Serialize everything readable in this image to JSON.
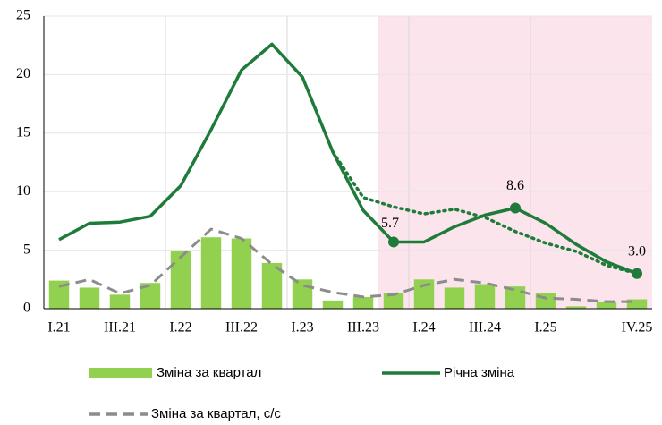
{
  "chart_data": {
    "type": "combo",
    "categories": [
      "I.21",
      null,
      "III.21",
      null,
      "I.22",
      null,
      "III.22",
      null,
      "I.23",
      null,
      "III.23",
      null,
      "I.24",
      null,
      "III.24",
      null,
      "I.25",
      null,
      null,
      "IV.25"
    ],
    "series": [
      {
        "name": "Зміна за квартал",
        "kind": "bar",
        "color": "#92d050",
        "values": [
          2.4,
          1.8,
          1.2,
          2.2,
          4.9,
          6.1,
          6.0,
          3.9,
          2.5,
          0.7,
          1.0,
          1.3,
          2.5,
          1.8,
          2.1,
          1.9,
          1.3,
          0.2,
          0.6,
          0.8
        ]
      },
      {
        "name": "Зміна за квартал, с/с",
        "kind": "dashed",
        "color": "#8c8c8c",
        "values": [
          1.9,
          2.5,
          1.3,
          2.0,
          4.4,
          6.8,
          6.0,
          3.8,
          2.0,
          1.4,
          1.0,
          1.2,
          2.0,
          2.5,
          2.2,
          1.6,
          0.9,
          0.8,
          0.6,
          0.6
        ]
      },
      {
        "name": "Річна зміна",
        "kind": "line",
        "color": "#1e7b3a",
        "values": [
          5.9,
          7.3,
          7.4,
          7.9,
          10.5,
          15.3,
          20.4,
          22.6,
          19.8,
          13.4,
          8.4,
          5.7,
          5.7,
          7.0,
          8.0,
          8.6,
          7.3,
          5.5,
          4.0,
          3.0
        ],
        "value_labels": [
          null,
          null,
          null,
          null,
          null,
          null,
          null,
          null,
          null,
          null,
          null,
          "5.7",
          null,
          null,
          null,
          "8.6",
          null,
          null,
          null,
          "3.0"
        ]
      },
      {
        "kind": "dotted",
        "color": "#1e7b3a",
        "values": [
          null,
          null,
          null,
          null,
          null,
          null,
          null,
          null,
          null,
          13.4,
          9.5,
          8.7,
          8.1,
          8.5,
          7.8,
          6.6,
          5.6,
          4.9,
          3.7,
          3.0
        ]
      }
    ],
    "ylim": [
      0,
      25
    ],
    "yticks": [
      0,
      5,
      10,
      15,
      20,
      25
    ],
    "grid": true
  }
}
